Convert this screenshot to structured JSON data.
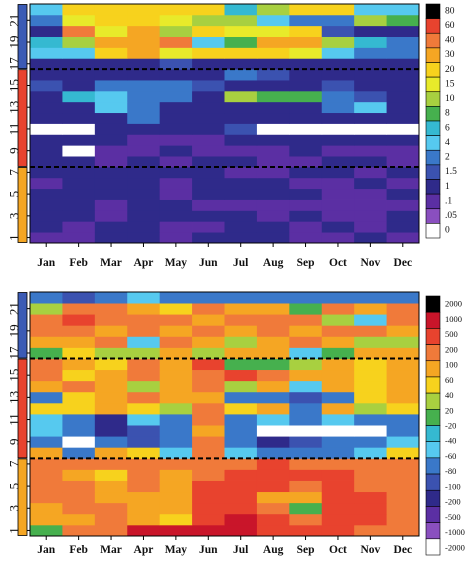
{
  "months": [
    "Jan",
    "Feb",
    "Mar",
    "Apr",
    "May",
    "Jun",
    "Jul",
    "Aug",
    "Sep",
    "Oct",
    "Nov",
    "Dec"
  ],
  "row_tick_labels": [
    "1",
    "3",
    "5",
    "7",
    "9",
    "11",
    "13",
    "15",
    "17",
    "19",
    "21"
  ],
  "chart_data": [
    {
      "type": "heatmap",
      "title": "",
      "xlabel": "",
      "ylabel": "",
      "x": [
        "Jan",
        "Feb",
        "Mar",
        "Apr",
        "May",
        "Jun",
        "Jul",
        "Aug",
        "Sep",
        "Oct",
        "Nov",
        "Dec"
      ],
      "y": [
        "1",
        "2",
        "3",
        "4",
        "5",
        "6",
        "7",
        "8",
        "9",
        "10",
        "11",
        "12",
        "13",
        "14",
        "15",
        "16",
        "17",
        "18",
        "19",
        "20",
        "21",
        "22"
      ],
      "y_ticks_shown": [
        "1",
        "3",
        "5",
        "7",
        "9",
        "11",
        "13",
        "15",
        "17",
        "19",
        "21"
      ],
      "dashed_separators_after_row": [
        7,
        16
      ],
      "group_sidebar_colors": [
        "#f5a623",
        "#e8432e",
        "#3b5bb5"
      ],
      "legend": {
        "colors": [
          "#000000",
          "#e8432e",
          "#f07a3a",
          "#f5a623",
          "#f7d21d",
          "#e8ea2a",
          "#a8d040",
          "#46b04e",
          "#35b9d1",
          "#56c9ef",
          "#3a78c9",
          "#3b52b0",
          "#2f2a8a",
          "#5b2fa3",
          "#8a4fbf",
          "#ffffff"
        ],
        "labels": [
          "80",
          "60",
          "40",
          "30",
          "20",
          "15",
          "10",
          "8",
          "6",
          "4",
          "2",
          "1.5",
          "1",
          ".1",
          ".05",
          "0"
        ]
      },
      "values": [
        [
          0.8,
          0.6,
          1.2,
          1,
          0.9,
          1.1,
          1,
          1,
          0.7,
          0.8,
          1,
          0.9
        ],
        [
          1,
          0.9,
          1,
          1.1,
          0.6,
          0.9,
          1.1,
          1,
          0.9,
          1,
          0.8,
          1
        ],
        [
          1.1,
          1,
          0.6,
          1.1,
          1,
          1,
          1.2,
          0.9,
          1,
          0.8,
          0.9,
          1
        ],
        [
          1.2,
          1.3,
          0.9,
          1,
          1.1,
          0.6,
          0.7,
          0.6,
          0.9,
          0.8,
          0.6,
          0.9
        ],
        [
          1,
          1.1,
          1.2,
          1,
          0.6,
          1,
          1,
          1.1,
          1.2,
          0.6,
          0.8,
          1
        ],
        [
          0.6,
          1,
          1.1,
          1.2,
          0.8,
          1.3,
          1,
          1,
          0.9,
          0.7,
          1,
          0.9
        ],
        [
          1.1,
          1,
          1.2,
          1.3,
          1.1,
          1,
          0.6,
          0.6,
          1,
          1,
          0.9,
          1
        ],
        [
          1.1,
          1,
          0.6,
          1.2,
          0.8,
          1,
          1,
          0.8,
          0.6,
          1.2,
          1,
          0.6
        ],
        [
          1.2,
          0,
          0.5,
          0.6,
          1.1,
          0.6,
          0.6,
          0.5,
          1,
          0.7,
          0.6,
          0.6
        ],
        [
          1.3,
          1.3,
          1.2,
          0.6,
          0.6,
          0.6,
          1,
          1,
          1,
          1,
          1.1,
          1
        ],
        [
          0,
          0,
          1.3,
          1.2,
          1,
          1.3,
          1.5,
          0,
          0,
          0,
          0,
          0
        ],
        [
          1,
          1.1,
          1.2,
          3,
          1.4,
          1.2,
          1.2,
          1.4,
          1.3,
          1.1,
          1.3,
          1.2
        ],
        [
          1.1,
          1.3,
          4,
          3.5,
          1.2,
          1.1,
          1.2,
          1.3,
          1.2,
          3,
          4,
          1.2
        ],
        [
          1.3,
          7,
          4,
          3.5,
          3,
          1.1,
          10,
          9,
          8,
          3,
          1.5,
          1.2
        ],
        [
          1.5,
          1.2,
          3,
          3,
          3,
          1.5,
          1.2,
          1.4,
          1.3,
          1.5,
          1.2,
          1.3
        ],
        [
          1.3,
          1.2,
          1.1,
          1.2,
          1.2,
          1,
          2,
          1.5,
          1.4,
          1.2,
          1.2,
          1.3
        ],
        [
          1.1,
          1.3,
          1.2,
          1.2,
          1.5,
          1.3,
          1.2,
          1.1,
          1.2,
          1.3,
          1.2,
          1.1
        ],
        [
          4,
          4,
          20,
          30,
          18,
          20,
          20,
          20,
          15,
          4,
          3,
          2
        ],
        [
          7,
          10,
          30,
          30,
          40,
          4,
          8,
          30,
          30,
          10,
          7,
          3
        ],
        [
          1.3,
          40,
          15,
          30,
          10,
          20,
          15,
          18,
          20,
          1.5,
          1.2,
          1.2
        ],
        [
          2,
          15,
          20,
          20,
          15,
          12,
          10,
          4,
          3,
          2,
          10,
          8
        ],
        [
          4,
          20,
          20,
          20,
          20,
          20,
          7,
          10,
          20,
          20,
          4,
          4
        ]
      ]
    },
    {
      "type": "heatmap",
      "title": "",
      "xlabel": "",
      "ylabel": "",
      "x": [
        "Jan",
        "Feb",
        "Mar",
        "Apr",
        "May",
        "Jun",
        "Jul",
        "Aug",
        "Sep",
        "Oct",
        "Nov",
        "Dec"
      ],
      "y": [
        "1",
        "2",
        "3",
        "4",
        "5",
        "6",
        "7",
        "8",
        "9",
        "10",
        "11",
        "12",
        "13",
        "14",
        "15",
        "16",
        "17",
        "18",
        "19",
        "20",
        "21",
        "22"
      ],
      "y_ticks_shown": [
        "1",
        "3",
        "5",
        "7",
        "9",
        "11",
        "13",
        "15",
        "17",
        "19",
        "21"
      ],
      "dashed_separators_after_row": [
        7,
        16
      ],
      "group_sidebar_colors": [
        "#f5a623",
        "#e8432e",
        "#3b5bb5"
      ],
      "legend": {
        "colors": [
          "#000000",
          "#c9152a",
          "#e8432e",
          "#f07a3a",
          "#f5a623",
          "#f7d21d",
          "#a8d040",
          "#46b04e",
          "#35b9d1",
          "#56c9ef",
          "#3a78c9",
          "#3b52b0",
          "#2f2a8a",
          "#5b2fa3",
          "#8a4fbf",
          "#ffffff"
        ],
        "labels": [
          "2000",
          "1000",
          "500",
          "200",
          "100",
          "60",
          "40",
          "20",
          "-20",
          "-40",
          "-60",
          "-80",
          "-100",
          "-200",
          "-500",
          "-1000",
          "-2000"
        ]
      },
      "values": [
        [
          20,
          300,
          300,
          1000,
          1000,
          1000,
          1000,
          600,
          600,
          500,
          400,
          200
        ],
        [
          100,
          100,
          200,
          100,
          60,
          800,
          1000,
          500,
          400,
          500,
          500,
          300
        ],
        [
          100,
          300,
          200,
          100,
          100,
          800,
          500,
          200,
          30,
          700,
          700,
          200
        ],
        [
          300,
          200,
          100,
          100,
          100,
          800,
          800,
          100,
          100,
          600,
          600,
          300
        ],
        [
          300,
          400,
          100,
          200,
          100,
          900,
          800,
          500,
          200,
          500,
          200,
          200
        ],
        [
          250,
          100,
          60,
          200,
          100,
          200,
          700,
          700,
          600,
          500,
          200,
          300
        ],
        [
          300,
          200,
          200,
          200,
          200,
          400,
          300,
          500,
          400,
          400,
          300,
          300
        ],
        [
          100,
          -60,
          100,
          60,
          -40,
          300,
          -40,
          -60,
          -60,
          -60,
          -40,
          60
        ],
        [
          -60,
          0,
          -60,
          -80,
          -60,
          300,
          -60,
          -100,
          -80,
          -60,
          -60,
          -40
        ],
        [
          -40,
          -60,
          -100,
          -80,
          -60,
          100,
          -60,
          0,
          0,
          0,
          0,
          -60
        ],
        [
          -40,
          -60,
          -100,
          -40,
          -60,
          200,
          -60,
          -40,
          -60,
          -40,
          -60,
          -60
        ],
        [
          60,
          60,
          100,
          80,
          40,
          200,
          60,
          100,
          -60,
          100,
          40,
          60
        ],
        [
          -60,
          60,
          100,
          200,
          100,
          100,
          -60,
          -60,
          -80,
          -60,
          60,
          100
        ],
        [
          100,
          200,
          100,
          40,
          100,
          300,
          40,
          100,
          -40,
          100,
          60,
          100
        ],
        [
          300,
          80,
          100,
          200,
          100,
          300,
          500,
          200,
          100,
          100,
          60,
          100
        ],
        [
          200,
          100,
          60,
          200,
          100,
          500,
          20,
          30,
          40,
          100,
          60,
          100
        ],
        [
          20,
          60,
          40,
          40,
          100,
          40,
          100,
          100,
          -40,
          20,
          100,
          100
        ],
        [
          100,
          100,
          200,
          -40,
          200,
          100,
          40,
          100,
          200,
          100,
          40,
          40
        ],
        [
          200,
          300,
          100,
          200,
          100,
          200,
          100,
          200,
          100,
          200,
          200,
          100
        ],
        [
          200,
          500,
          300,
          200,
          200,
          100,
          200,
          200,
          200,
          40,
          -40,
          200
        ],
        [
          40,
          200,
          200,
          100,
          60,
          200,
          100,
          100,
          20,
          200,
          100,
          200
        ],
        [
          -60,
          -80,
          -60,
          -40,
          -60,
          -60,
          -60,
          -60,
          -60,
          -60,
          -60,
          -60
        ]
      ]
    }
  ]
}
